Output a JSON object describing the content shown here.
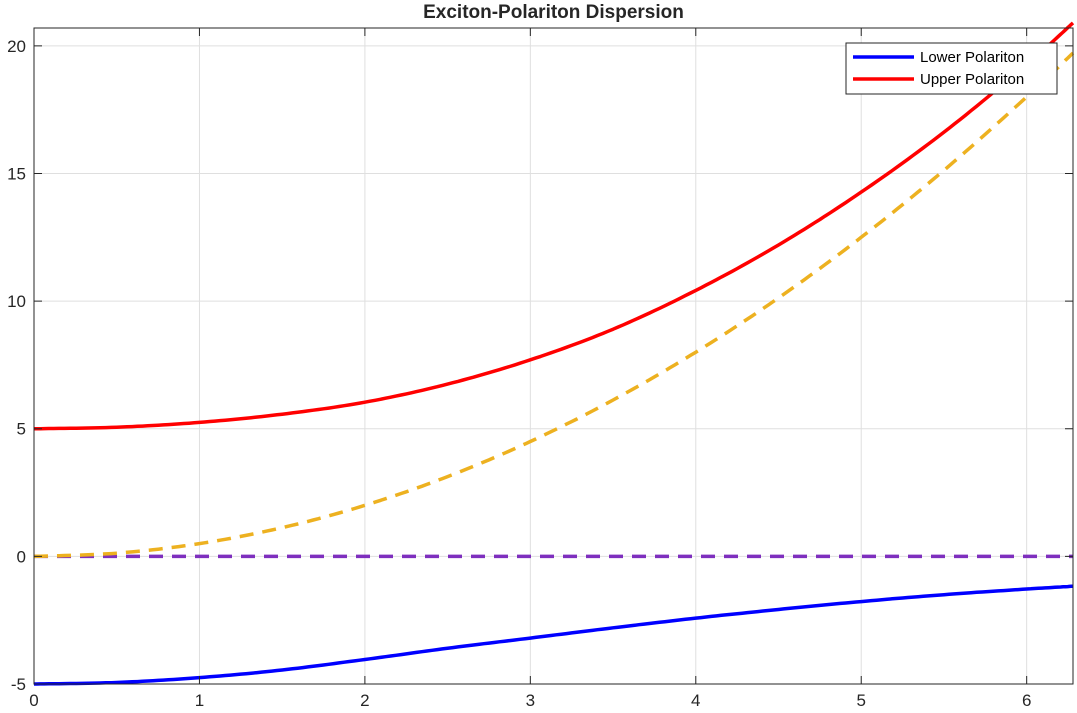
{
  "chart_data": {
    "type": "line",
    "title": "Exciton-Polariton Dispersion",
    "xlabel": "",
    "ylabel": "",
    "xlim": [
      0,
      6.28
    ],
    "ylim": [
      -5,
      20.7
    ],
    "xticks": [
      0,
      1,
      2,
      3,
      4,
      5,
      6
    ],
    "yticks": [
      -5,
      0,
      5,
      10,
      15,
      20
    ],
    "grid": true,
    "legend_position": "top-right",
    "x": [
      0,
      0.5,
      1,
      1.5,
      2,
      2.5,
      3,
      3.5,
      4,
      4.5,
      5,
      5.5,
      6,
      6.28
    ],
    "series": [
      {
        "name": "Lower Polariton",
        "color": "#0000ff",
        "style": "solid",
        "in_legend": true,
        "values": [
          -5.0,
          -4.94,
          -4.75,
          -4.45,
          -4.04,
          -3.6,
          -3.2,
          -2.8,
          -2.42,
          -2.08,
          -1.77,
          -1.5,
          -1.28,
          -1.17
        ]
      },
      {
        "name": "Upper Polariton",
        "color": "#ff0000",
        "style": "solid",
        "in_legend": true,
        "values": [
          5.0,
          5.06,
          5.25,
          5.57,
          6.04,
          6.75,
          7.7,
          8.9,
          10.42,
          12.2,
          14.27,
          16.62,
          19.27,
          20.9
        ]
      },
      {
        "color": "#edb120",
        "style": "dashed",
        "in_legend": false,
        "values": [
          0,
          0.125,
          0.5,
          1.125,
          2.0,
          3.125,
          4.5,
          6.125,
          8.0,
          10.125,
          12.5,
          15.125,
          18.0,
          19.72
        ]
      },
      {
        "color": "#7e2fbe",
        "style": "dashed",
        "in_legend": false,
        "values": [
          0,
          0,
          0,
          0,
          0,
          0,
          0,
          0,
          0,
          0,
          0,
          0,
          0,
          0
        ]
      }
    ]
  }
}
